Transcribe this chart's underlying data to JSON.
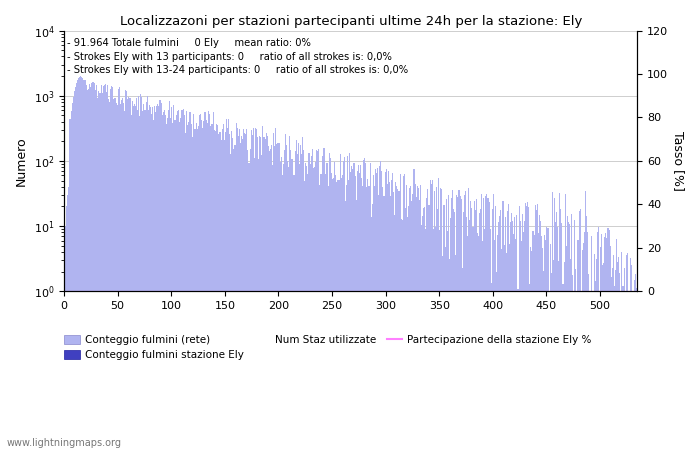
{
  "title": "Localizzazoni per stazioni partecipanti ultime 24h per la stazione: Ely",
  "ylabel_left": "Numero",
  "ylabel_right": "Tasso [%]",
  "annotation_lines": [
    "91.964 Totale fulmini     0 Ely     mean ratio: 0%",
    "Strokes Ely with 13 participants: 0     ratio of all strokes is: 0,0%",
    "Strokes Ely with 13-24 participants: 0     ratio of all strokes is: 0,0%"
  ],
  "x_ticks": [
    0,
    50,
    100,
    150,
    200,
    250,
    300,
    350,
    400,
    450,
    500
  ],
  "y_right_ticks": [
    0,
    20,
    40,
    60,
    80,
    100,
    120
  ],
  "y_right_max": 120,
  "bar_color_light": "#b0b4f0",
  "bar_color_dark": "#4040c0",
  "line_color": "#ff80ff",
  "watermark": "www.lightningmaps.org",
  "legend": [
    {
      "label": "Conteggio fulmini (rete)",
      "color": "#b0b4f0"
    },
    {
      "label": "Conteggio fulmini stazione Ely",
      "color": "#4040c0"
    },
    {
      "label": "Num Staz utilizzate",
      "color": null
    },
    {
      "label": "Partecipazione della stazione Ely %",
      "color": "#ff80ff"
    }
  ],
  "n_bins": 535,
  "x_max": 535
}
